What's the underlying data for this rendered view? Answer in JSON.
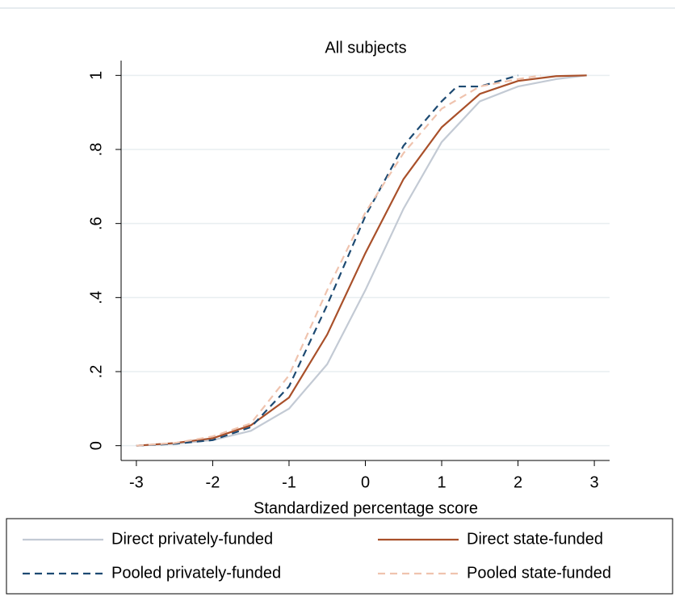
{
  "chart_data": {
    "type": "line",
    "title": "All subjects",
    "x_label": "Standardized percentage score",
    "xlim": [
      -3.2,
      3.2
    ],
    "ylim": [
      -0.04,
      1.04
    ],
    "xticks": [
      -3,
      -2,
      -1,
      0,
      1,
      2,
      3
    ],
    "yticks": [
      0,
      {
        "value": 0.2,
        "label": ".2"
      },
      {
        "value": 0.4,
        "label": ".4"
      },
      {
        "value": 0.6,
        "label": ".6"
      },
      {
        "value": 0.8,
        "label": ".8"
      },
      1
    ],
    "grid": true,
    "legend": "bottom",
    "series": [
      {
        "name": "Direct privately-funded",
        "color": "#c3cad4",
        "style": "solid",
        "x": [
          -3,
          -2.5,
          -2,
          -1.5,
          -1,
          -0.5,
          0,
          0.5,
          1,
          1.5,
          2,
          2.5,
          2.9
        ],
        "values": [
          0,
          0.005,
          0.015,
          0.04,
          0.1,
          0.22,
          0.42,
          0.64,
          0.82,
          0.93,
          0.97,
          0.99,
          1
        ]
      },
      {
        "name": "Direct state-funded",
        "color": "#a9502a",
        "style": "solid",
        "x": [
          -3,
          -2.5,
          -2,
          -1.5,
          -1,
          -0.5,
          0,
          0.5,
          1,
          1.5,
          2,
          2.5,
          2.9
        ],
        "values": [
          0,
          0.007,
          0.02,
          0.055,
          0.13,
          0.3,
          0.52,
          0.72,
          0.86,
          0.95,
          0.985,
          0.998,
          1
        ]
      },
      {
        "name": "Pooled privately-funded",
        "color": "#1d4a72",
        "style": "dashed",
        "x": [
          -3,
          -2.5,
          -2,
          -1.5,
          -1,
          -0.5,
          0,
          0.5,
          1,
          1.2,
          1.5,
          2
        ],
        "values": [
          0,
          0.005,
          0.015,
          0.05,
          0.16,
          0.38,
          0.62,
          0.81,
          0.93,
          0.97,
          0.97,
          1
        ]
      },
      {
        "name": "Pooled state-funded",
        "color": "#efc3ae",
        "style": "dashed",
        "x": [
          -3,
          -2.5,
          -2,
          -1.5,
          -1,
          -0.5,
          0,
          0.5,
          1,
          1.5,
          2,
          2.3
        ],
        "values": [
          0,
          0.007,
          0.025,
          0.06,
          0.19,
          0.42,
          0.63,
          0.79,
          0.91,
          0.97,
          0.99,
          1
        ]
      }
    ]
  }
}
